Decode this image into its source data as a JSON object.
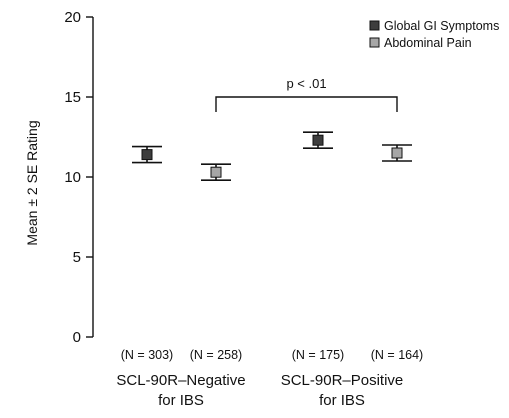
{
  "chart_data": {
    "type": "scatter",
    "ylabel": "Mean ± 2 SE Rating",
    "ylim": [
      0,
      20
    ],
    "yticks": [
      0,
      5,
      10,
      15,
      20
    ],
    "grid": false,
    "legend_position": "top-right",
    "series": [
      {
        "name": "Global GI Symptoms",
        "color": "#3d3d3d",
        "points": [
          {
            "group": 0,
            "n_label": "(N = 303)",
            "mean": 11.4,
            "low": 10.9,
            "high": 11.9
          },
          {
            "group": 1,
            "n_label": "(N = 175)",
            "mean": 12.3,
            "low": 11.8,
            "high": 12.8
          }
        ]
      },
      {
        "name": "Abdominal Pain",
        "color": "#a6a6a6",
        "points": [
          {
            "group": 0,
            "n_label": "(N = 258)",
            "mean": 10.3,
            "low": 9.8,
            "high": 10.8
          },
          {
            "group": 1,
            "n_label": "(N = 164)",
            "mean": 11.5,
            "low": 11.0,
            "high": 12.0
          }
        ]
      }
    ],
    "groups": [
      {
        "line1": "SCL-90R–Negative",
        "line2": "for IBS"
      },
      {
        "line1": "SCL-90R–Positive",
        "line2": "for IBS"
      }
    ],
    "annotation": {
      "text": "p < .01",
      "from_group": 0,
      "from_series": 1,
      "to_group": 1,
      "to_series": 1,
      "level": 15
    }
  }
}
